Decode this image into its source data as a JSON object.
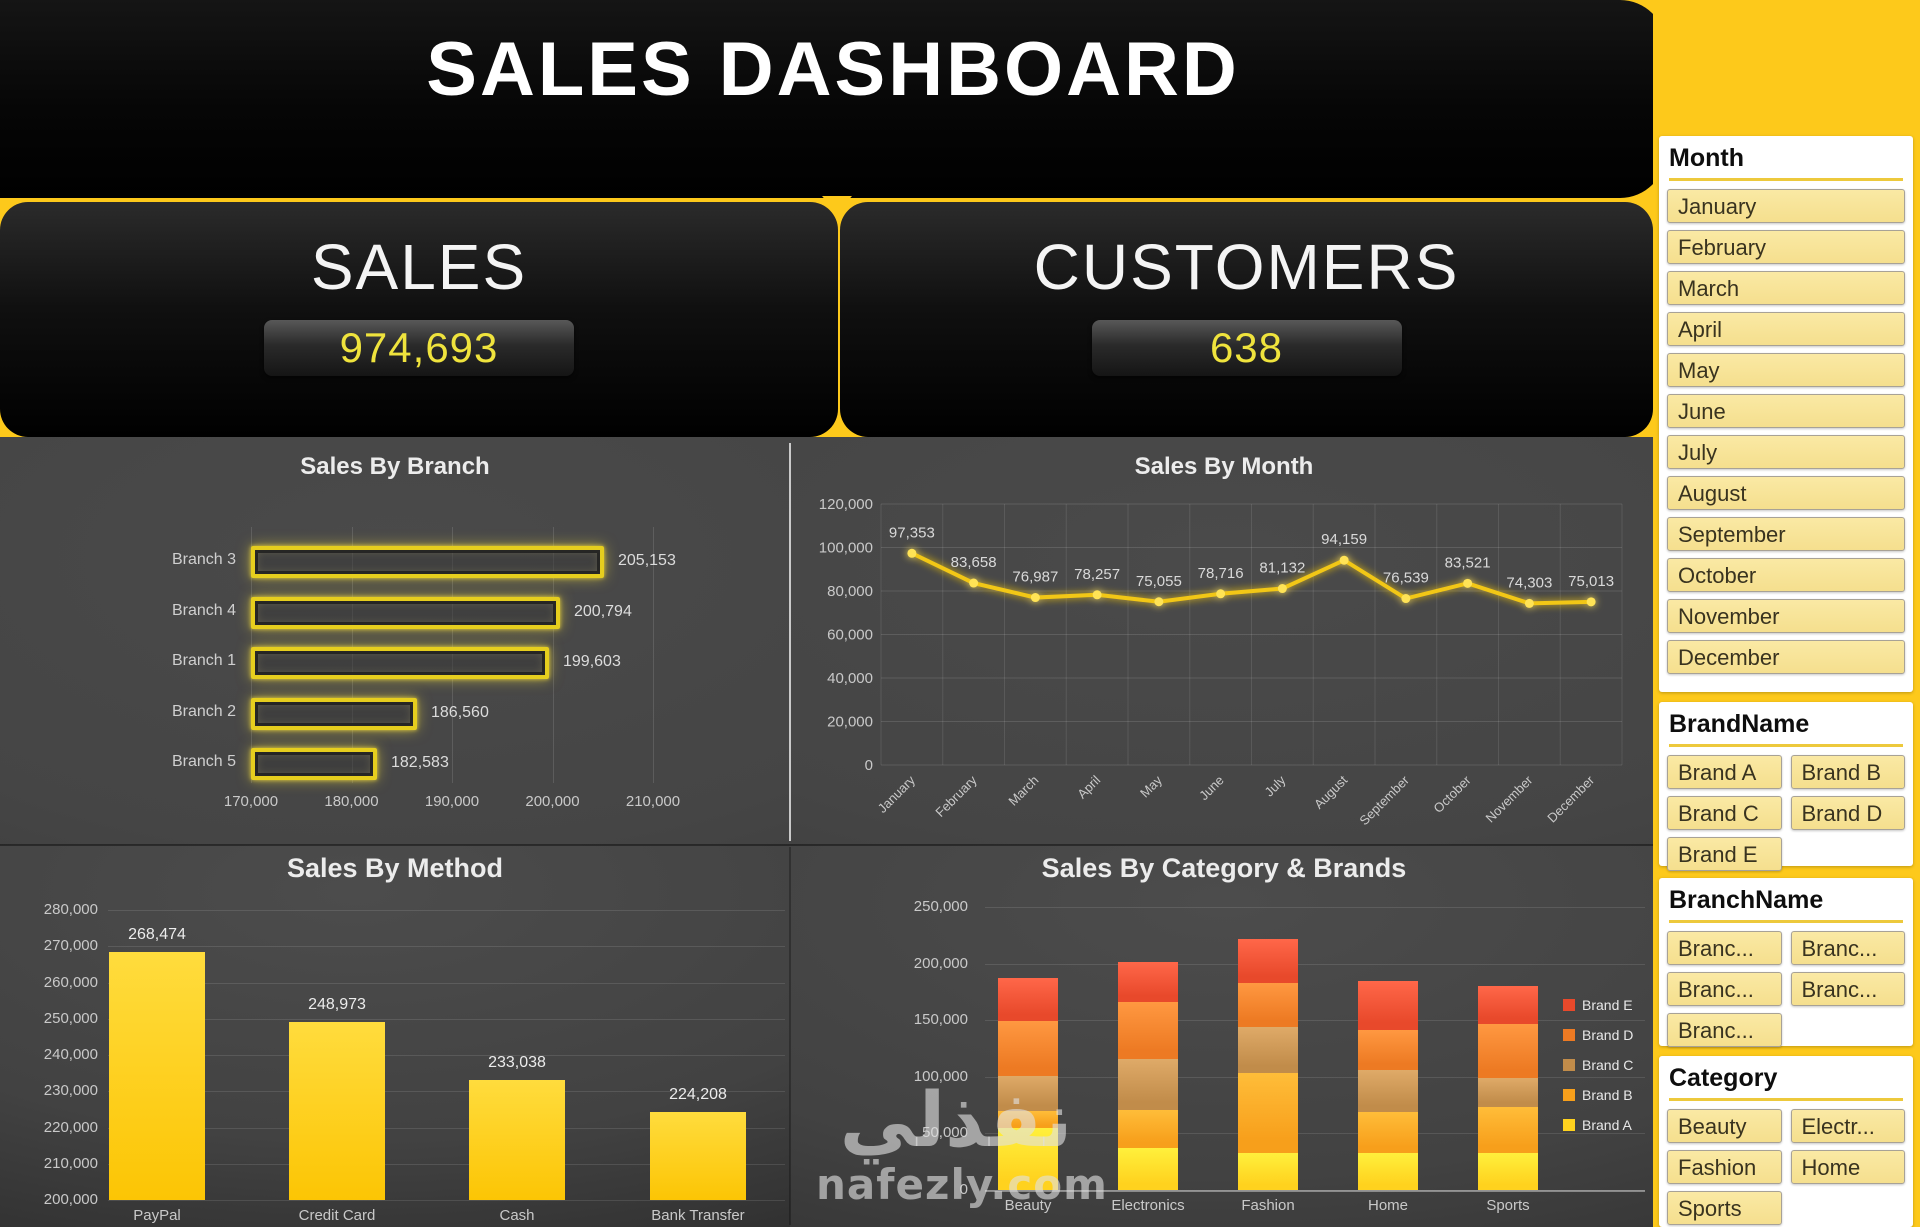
{
  "page": {
    "title": "SALES DASHBOARD"
  },
  "kpis": {
    "sales_label": "SALES",
    "sales_value": "974,693",
    "customers_label": "CUSTOMERS",
    "customers_value": "638"
  },
  "colors": {
    "background_yellow": "#FDC91B",
    "kpi_value": "#EFE33D",
    "line": "#F2C713",
    "line_point": "#FFE357",
    "branch_bar_border": "#E6CE1E",
    "method_bar_top": "#FFDC3D",
    "method_bar_bottom": "#FCC504",
    "brands": {
      "Brand A": "#FFD21E",
      "Brand B": "#F79F1B",
      "Brand C": "#C18C4A",
      "Brand D": "#ED7A23",
      "Brand E": "#E8492B"
    }
  },
  "slicers": {
    "month": {
      "title": "Month",
      "items": [
        "January",
        "February",
        "March",
        "April",
        "May",
        "June",
        "July",
        "August",
        "September",
        "October",
        "November",
        "December"
      ]
    },
    "brand": {
      "title": "BrandName",
      "items": [
        "Brand A",
        "Brand B",
        "Brand C",
        "Brand D",
        "Brand E"
      ]
    },
    "branch": {
      "title": "BranchName",
      "items": [
        "Branc...",
        "Branc...",
        "Branc...",
        "Branc...",
        "Branc..."
      ]
    },
    "category": {
      "title": "Category",
      "items": [
        "Beauty",
        "Electr...",
        "Fashion",
        "Home",
        "Sports"
      ]
    }
  },
  "watermark": {
    "arabic": "نفذلي",
    "latin": "nafezly.com"
  },
  "chart_data": [
    {
      "id": "branch",
      "type": "bar",
      "orientation": "horizontal",
      "title": "Sales By Branch",
      "categories": [
        "Branch 3",
        "Branch 4",
        "Branch 1",
        "Branch 2",
        "Branch 5"
      ],
      "values": [
        205153,
        200794,
        199603,
        186560,
        182583
      ],
      "xlim": [
        170000,
        210000
      ],
      "xticks": [
        "170,000",
        "180,000",
        "190,000",
        "200,000",
        "210,000"
      ],
      "grid": true,
      "data_labels": true
    },
    {
      "id": "month",
      "type": "line",
      "title": "Sales By Month",
      "categories": [
        "January",
        "February",
        "March",
        "April",
        "May",
        "June",
        "July",
        "August",
        "September",
        "October",
        "November",
        "December"
      ],
      "values": [
        97353,
        83658,
        76987,
        78257,
        75055,
        78716,
        81132,
        94159,
        76539,
        83521,
        74303,
        75013
      ],
      "ylim": [
        0,
        120000
      ],
      "yticks": [
        "120,000",
        "100,000",
        "80,000",
        "60,000",
        "40,000",
        "20,000",
        "0"
      ],
      "grid": true,
      "data_labels": true
    },
    {
      "id": "method",
      "type": "bar",
      "orientation": "vertical",
      "title": "Sales By Method",
      "categories": [
        "PayPal",
        "Credit Card",
        "Cash",
        "Bank Transfer"
      ],
      "values": [
        268474,
        248973,
        233038,
        224208
      ],
      "ylim": [
        200000,
        280000
      ],
      "yticks": [
        "200,000",
        "210,000",
        "220,000",
        "230,000",
        "240,000",
        "250,000",
        "260,000",
        "270,000",
        "280,000"
      ],
      "grid": true,
      "data_labels": true
    },
    {
      "id": "stacked",
      "type": "bar",
      "subtype": "stacked",
      "title": "Sales By Category & Brands",
      "categories": [
        "Beauty",
        "Electronics",
        "Fashion",
        "Home",
        "Sports"
      ],
      "series": [
        {
          "name": "Brand A",
          "values": [
            55000,
            37000,
            33000,
            33000,
            33000
          ]
        },
        {
          "name": "Brand B",
          "values": [
            15000,
            34000,
            70000,
            36000,
            40000
          ]
        },
        {
          "name": "Brand C",
          "values": [
            31000,
            45000,
            41000,
            37000,
            26000
          ]
        },
        {
          "name": "Brand D",
          "values": [
            48000,
            50000,
            39000,
            35000,
            48000
          ]
        },
        {
          "name": "Brand E",
          "values": [
            38000,
            35000,
            39000,
            44000,
            33000
          ]
        }
      ],
      "series_note": "segment values estimated from gridlines; totals ≈ 187k, 201k, 222k, 185k, 180k",
      "legend": [
        "Brand E",
        "Brand D",
        "Brand C",
        "Brand B",
        "Brand A"
      ],
      "legend_position": "right",
      "ylim": [
        0,
        250000
      ],
      "yticks": [
        "0",
        "50,000",
        "100,000",
        "150,000",
        "200,000",
        "250,000"
      ],
      "grid": true,
      "data_labels": false
    }
  ]
}
